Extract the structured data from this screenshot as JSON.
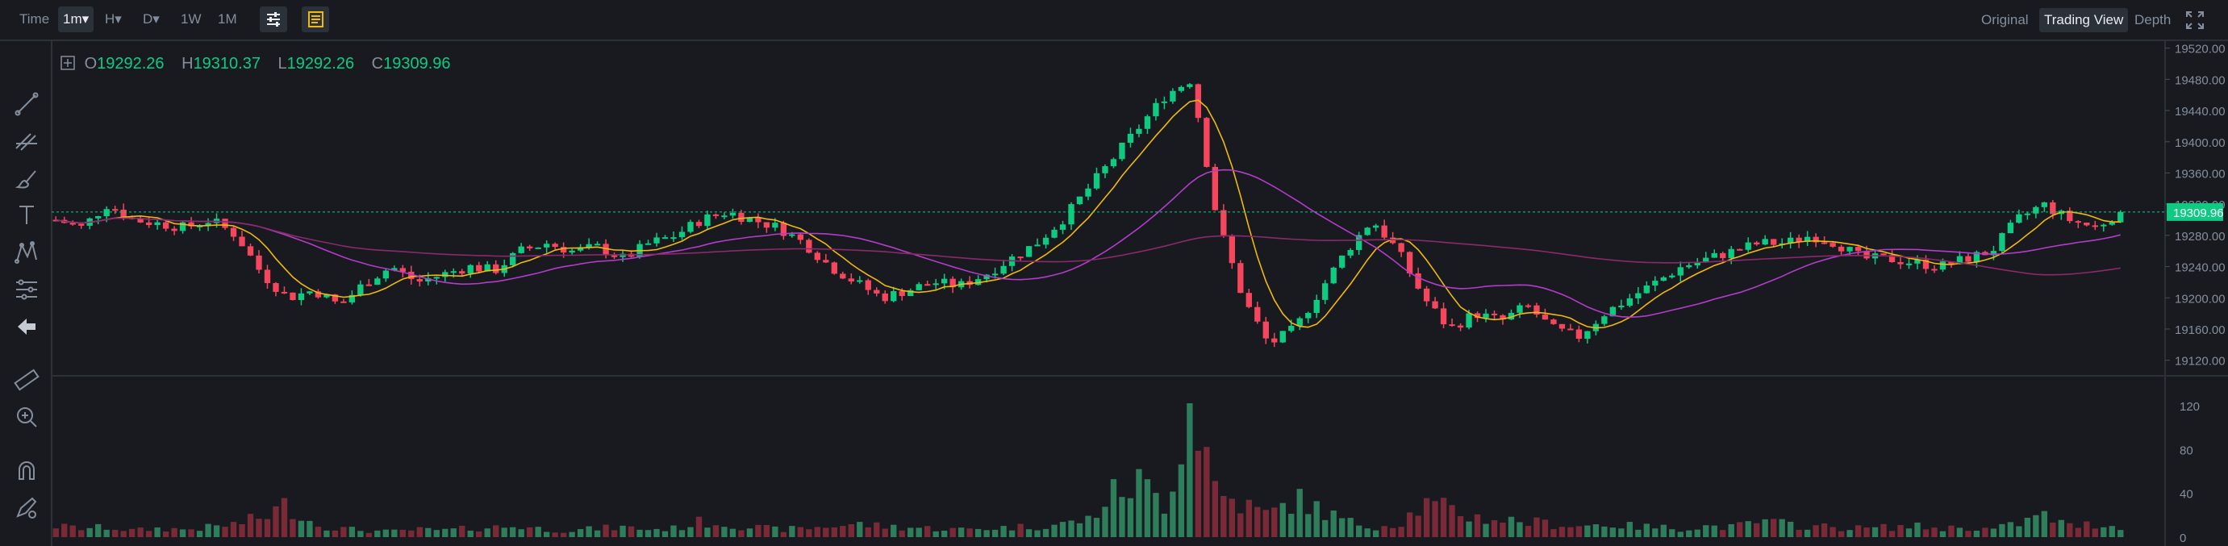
{
  "toolbar": {
    "time_label": "Time",
    "intervals": [
      "1m",
      "H",
      "D",
      "1W",
      "1M"
    ],
    "active_interval": "1m",
    "interval_dropdown_marker": "▾"
  },
  "views": {
    "original": "Original",
    "trading_view": "Trading View",
    "depth": "Depth"
  },
  "ohlc": {
    "o_label": "O",
    "o": "19292.26",
    "h_label": "H",
    "h": "19310.37",
    "l_label": "L",
    "l": "19292.26",
    "c_label": "C",
    "c": "19309.96"
  },
  "price_axis": {
    "ticks": [
      "19520.00",
      "19480.00",
      "19440.00",
      "19400.00",
      "19360.00",
      "19320.00",
      "19280.00",
      "19240.00",
      "19200.00",
      "19160.00",
      "19120.00"
    ],
    "current_price": "19309.96"
  },
  "volume_axis": {
    "ticks": [
      "120",
      "80",
      "40",
      "0"
    ]
  },
  "drawing_tools": [
    "trend-line-icon",
    "fib-icon",
    "brush-icon",
    "text-tool-icon",
    "pattern-icon",
    "measure-icon",
    "back-arrow-icon",
    "ruler-icon",
    "zoom-in-icon",
    "magnet-icon",
    "lock-draw-icon"
  ],
  "colors": {
    "up": "#0ecb81",
    "down": "#f6465d",
    "up_volume": "#2e7d5b",
    "down_volume": "#7a2a37",
    "ma_short": "#f0b90b",
    "ma_mid": "#b33cc9",
    "ma_long": "#8a2a6a",
    "background": "#181a20"
  },
  "chart_data": {
    "type": "candlestick",
    "ylim": [
      19100,
      19530
    ],
    "volume_ylim": [
      0,
      140
    ],
    "current_price": 19309.96,
    "candles_anchor_close": [
      19300,
      19290,
      19320,
      19300,
      19295,
      19290,
      19300,
      19280,
      19230,
      19200,
      19210,
      19190,
      19220,
      19240,
      19220,
      19230,
      19240,
      19235,
      19260,
      19270,
      19260,
      19265,
      19250,
      19270,
      19280,
      19300,
      19310,
      19300,
      19290,
      19270,
      19240,
      19220,
      19200,
      19210,
      19220,
      19215,
      19230,
      19250,
      19270,
      19300,
      19340,
      19380,
      19420,
      19460,
      19480,
      19300,
      19200,
      19140,
      19160,
      19210,
      19260,
      19300,
      19260,
      19200,
      19160,
      19180,
      19170,
      19190,
      19160,
      19150,
      19180,
      19200,
      19220,
      19240,
      19250,
      19260,
      19270,
      19270,
      19280,
      19270,
      19250,
      19250,
      19245,
      19240,
      19250,
      19260,
      19300,
      19320,
      19300,
      19290,
      19310
    ],
    "volume_anchor": [
      10,
      8,
      9,
      6,
      8,
      7,
      9,
      12,
      18,
      30,
      12,
      8,
      6,
      5,
      7,
      6,
      8,
      9,
      10,
      7,
      6,
      8,
      9,
      7,
      8,
      14,
      12,
      9,
      7,
      8,
      10,
      12,
      10,
      9,
      8,
      7,
      8,
      9,
      10,
      12,
      16,
      40,
      50,
      30,
      130,
      40,
      30,
      20,
      35,
      25,
      14,
      10,
      12,
      30,
      25,
      18,
      16,
      14,
      12,
      10,
      12,
      10,
      9,
      8,
      10,
      9,
      14,
      12,
      10,
      9,
      8,
      9,
      10,
      8,
      9,
      7,
      12,
      20,
      10,
      12,
      9
    ]
  }
}
